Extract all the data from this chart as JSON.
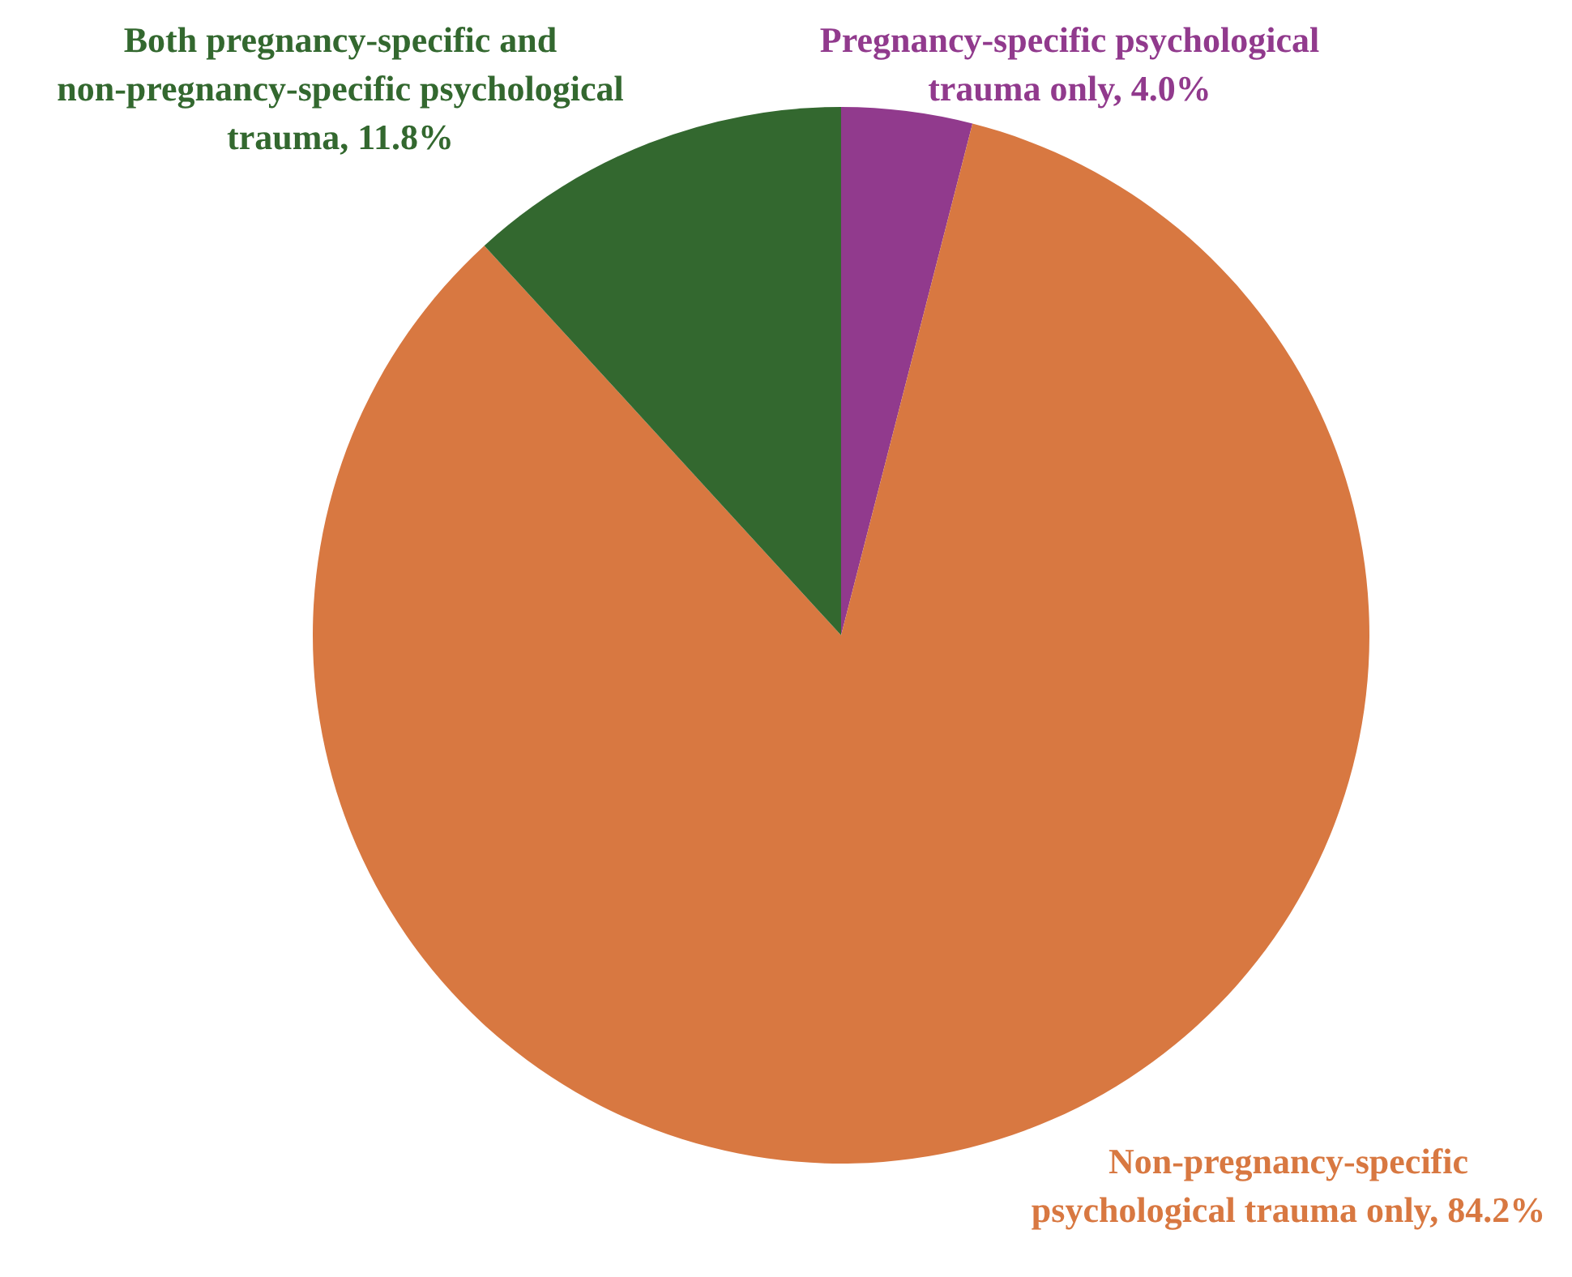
{
  "chart_data": {
    "type": "pie",
    "categories": [
      "Pregnancy-specific psychological trauma only",
      "Non-pregnancy-specific psychological trauma only",
      "Both pregnancy-specific and non-pregnancy-specific psychological trauma"
    ],
    "values": [
      4.0,
      84.2,
      11.8
    ],
    "colors": [
      "#913a8d",
      "#d87841",
      "#33682f"
    ],
    "value_labels": [
      "4.0%",
      "84.2%",
      "11.8%"
    ]
  }
}
